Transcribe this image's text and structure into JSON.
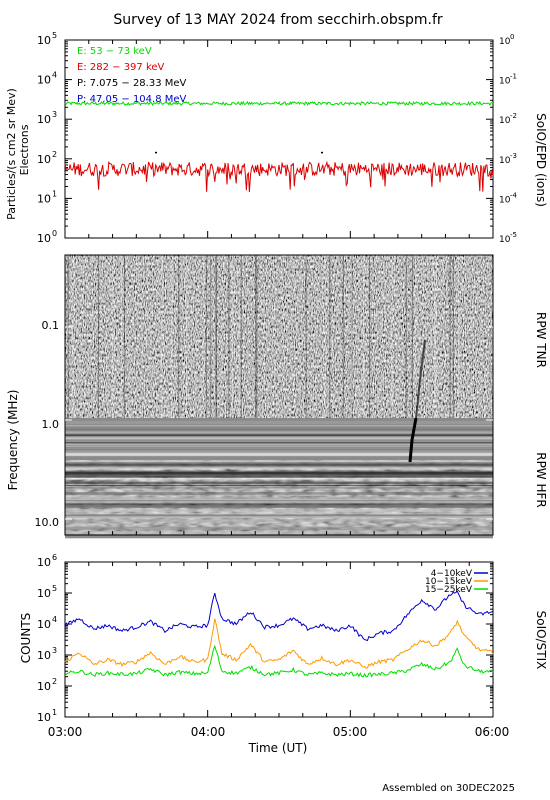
{
  "title": "Survey of 13 MAY 2024 from secchirh.obspm.fr",
  "footer": "Assembled on 30DEC2025",
  "colors": {
    "green": "#00dd00",
    "red": "#dd0000",
    "black": "#000000",
    "blue": "#0000cc",
    "orange": "#ff9900"
  },
  "chart_data": [
    {
      "type": "line",
      "ylabel": "Particles/(s cm2 sr Mev)",
      "ylabel2": "Electrons",
      "right_label": "SoIO/EPD (ions)",
      "y_scale": "log",
      "ylim": [
        1,
        100000
      ],
      "y_ticks": [
        {
          "base": "10",
          "exp": "0"
        },
        {
          "base": "10",
          "exp": "1"
        },
        {
          "base": "10",
          "exp": "2"
        },
        {
          "base": "10",
          "exp": "3"
        },
        {
          "base": "10",
          "exp": "4"
        },
        {
          "base": "10",
          "exp": "5"
        }
      ],
      "y2_scale": "log",
      "y2lim": [
        1e-05,
        1
      ],
      "y2_ticks": [
        {
          "base": "10",
          "exp": "-5"
        },
        {
          "base": "10",
          "exp": "-4"
        },
        {
          "base": "10",
          "exp": "-3"
        },
        {
          "base": "10",
          "exp": "-2"
        },
        {
          "base": "10",
          "exp": "-1"
        },
        {
          "base": "10",
          "exp": "0"
        }
      ],
      "xlim": [
        "03:00",
        "06:00"
      ],
      "legend": [
        {
          "label": "E: 53 − 73 keV",
          "color": "#00dd00"
        },
        {
          "label": "E: 282 − 397 keV",
          "color": "#dd0000"
        },
        {
          "label": "P: 7.075 − 28.33 MeV",
          "color": "#000000"
        },
        {
          "label": "P: 47.05 − 104.8 MeV",
          "color": "#0000cc"
        }
      ],
      "series": [
        {
          "name": "E: 53 − 73 keV",
          "color": "#00dd00",
          "level": 2500,
          "noise": 0.04
        },
        {
          "name": "E: 282 − 397 keV",
          "color": "#dd0000",
          "level": 55,
          "noise": 0.18
        }
      ]
    },
    {
      "type": "heatmap",
      "ylabel": "Frequency (MHz)",
      "y_scale": "log",
      "y_ticks": [
        "0.1",
        "1.0",
        "10.0"
      ],
      "bands": [
        "RPW TNR",
        "RPW HFR"
      ],
      "xlim": [
        "03:00",
        "06:00"
      ]
    },
    {
      "type": "line",
      "ylabel": "COUNTS",
      "right_label": "SoIO/STIX",
      "y_scale": "log",
      "ylim": [
        10,
        1000000
      ],
      "y_ticks": [
        {
          "base": "10",
          "exp": "1"
        },
        {
          "base": "10",
          "exp": "2"
        },
        {
          "base": "10",
          "exp": "3"
        },
        {
          "base": "10",
          "exp": "4"
        },
        {
          "base": "10",
          "exp": "5"
        },
        {
          "base": "10",
          "exp": "6"
        }
      ],
      "xlabel": "Time (UT)",
      "x_ticks": [
        "03:00",
        "04:00",
        "05:00",
        "06:00"
      ],
      "legend": [
        {
          "label": "4−10keV",
          "color": "#0000cc"
        },
        {
          "label": "10−15keV",
          "color": "#ff9900"
        },
        {
          "label": "15−25keV",
          "color": "#00dd00"
        }
      ],
      "series": [
        {
          "name": "4−10keV",
          "color": "#0000cc",
          "x": [
            3.0,
            3.1,
            3.2,
            3.3,
            3.4,
            3.5,
            3.6,
            3.7,
            3.8,
            3.9,
            4.0,
            4.05,
            4.1,
            4.2,
            4.3,
            4.4,
            4.5,
            4.6,
            4.7,
            4.8,
            4.9,
            5.0,
            5.1,
            5.2,
            5.3,
            5.4,
            5.5,
            5.6,
            5.7,
            5.75,
            5.8,
            5.9,
            6.0
          ],
          "y": [
            9000,
            15000,
            7000,
            9000,
            6000,
            8000,
            12000,
            6000,
            10000,
            8000,
            9000,
            100000,
            15000,
            10000,
            25000,
            8000,
            9000,
            15000,
            7000,
            9000,
            6000,
            9000,
            3000,
            5000,
            6000,
            20000,
            60000,
            30000,
            90000,
            100000,
            40000,
            20000,
            25000
          ]
        },
        {
          "name": "10−15keV",
          "color": "#ff9900",
          "x": [
            3.0,
            3.1,
            3.2,
            3.3,
            3.4,
            3.5,
            3.6,
            3.7,
            3.8,
            3.9,
            4.0,
            4.05,
            4.1,
            4.2,
            4.3,
            4.4,
            4.5,
            4.6,
            4.7,
            4.8,
            4.9,
            5.0,
            5.1,
            5.2,
            5.3,
            5.4,
            5.5,
            5.6,
            5.7,
            5.75,
            5.8,
            5.9,
            6.0
          ],
          "y": [
            600,
            1200,
            500,
            700,
            500,
            600,
            1200,
            500,
            900,
            600,
            700,
            15000,
            1100,
            700,
            2200,
            600,
            700,
            1400,
            500,
            800,
            500,
            700,
            400,
            600,
            700,
            1500,
            3000,
            2000,
            5000,
            12000,
            4000,
            1500,
            1200
          ]
        },
        {
          "name": "15−25keV",
          "color": "#00dd00",
          "x": [
            3.0,
            3.1,
            3.2,
            3.3,
            3.4,
            3.5,
            3.6,
            3.7,
            3.8,
            3.9,
            4.0,
            4.05,
            4.1,
            4.2,
            4.3,
            4.4,
            4.5,
            4.6,
            4.7,
            4.8,
            4.9,
            5.0,
            5.1,
            5.2,
            5.3,
            5.4,
            5.5,
            5.6,
            5.7,
            5.75,
            5.8,
            5.9,
            6.0
          ],
          "y": [
            250,
            300,
            230,
            260,
            240,
            250,
            350,
            230,
            280,
            250,
            260,
            2000,
            300,
            260,
            400,
            240,
            260,
            330,
            230,
            260,
            230,
            250,
            220,
            240,
            260,
            320,
            500,
            350,
            600,
            1500,
            450,
            300,
            280
          ]
        }
      ]
    }
  ]
}
